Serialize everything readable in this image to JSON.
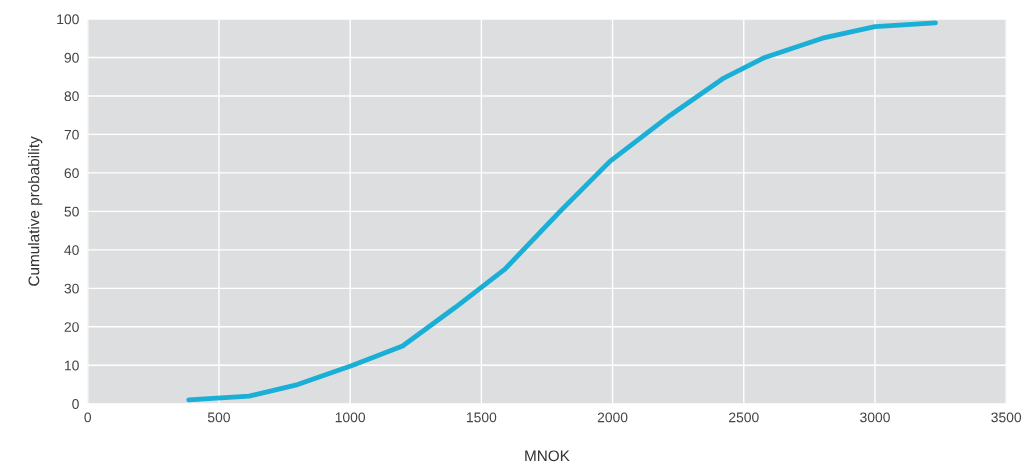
{
  "chart_data": {
    "type": "line",
    "xlabel": "MNOK",
    "ylabel": "Cumulative probability",
    "x": [
      385,
      615,
      800,
      1010,
      1200,
      1400,
      1590,
      1800,
      1990,
      2220,
      2420,
      2580,
      2800,
      3000,
      3230
    ],
    "series": [
      {
        "color": "#1aafd6",
        "values": [
          1,
          2,
          5,
          10,
          15,
          25,
          35,
          50,
          63,
          75,
          84.5,
          90,
          95,
          98,
          99
        ]
      }
    ],
    "xlim": [
      0,
      3500
    ],
    "xticks": [
      0,
      500,
      1000,
      1500,
      2000,
      2500,
      3000,
      3500
    ],
    "ylim": [
      0,
      100
    ],
    "yticks": [
      0,
      10,
      20,
      30,
      40,
      50,
      60,
      70,
      80,
      90,
      100
    ],
    "grid": true,
    "marker": "none",
    "line_style": "solid"
  }
}
